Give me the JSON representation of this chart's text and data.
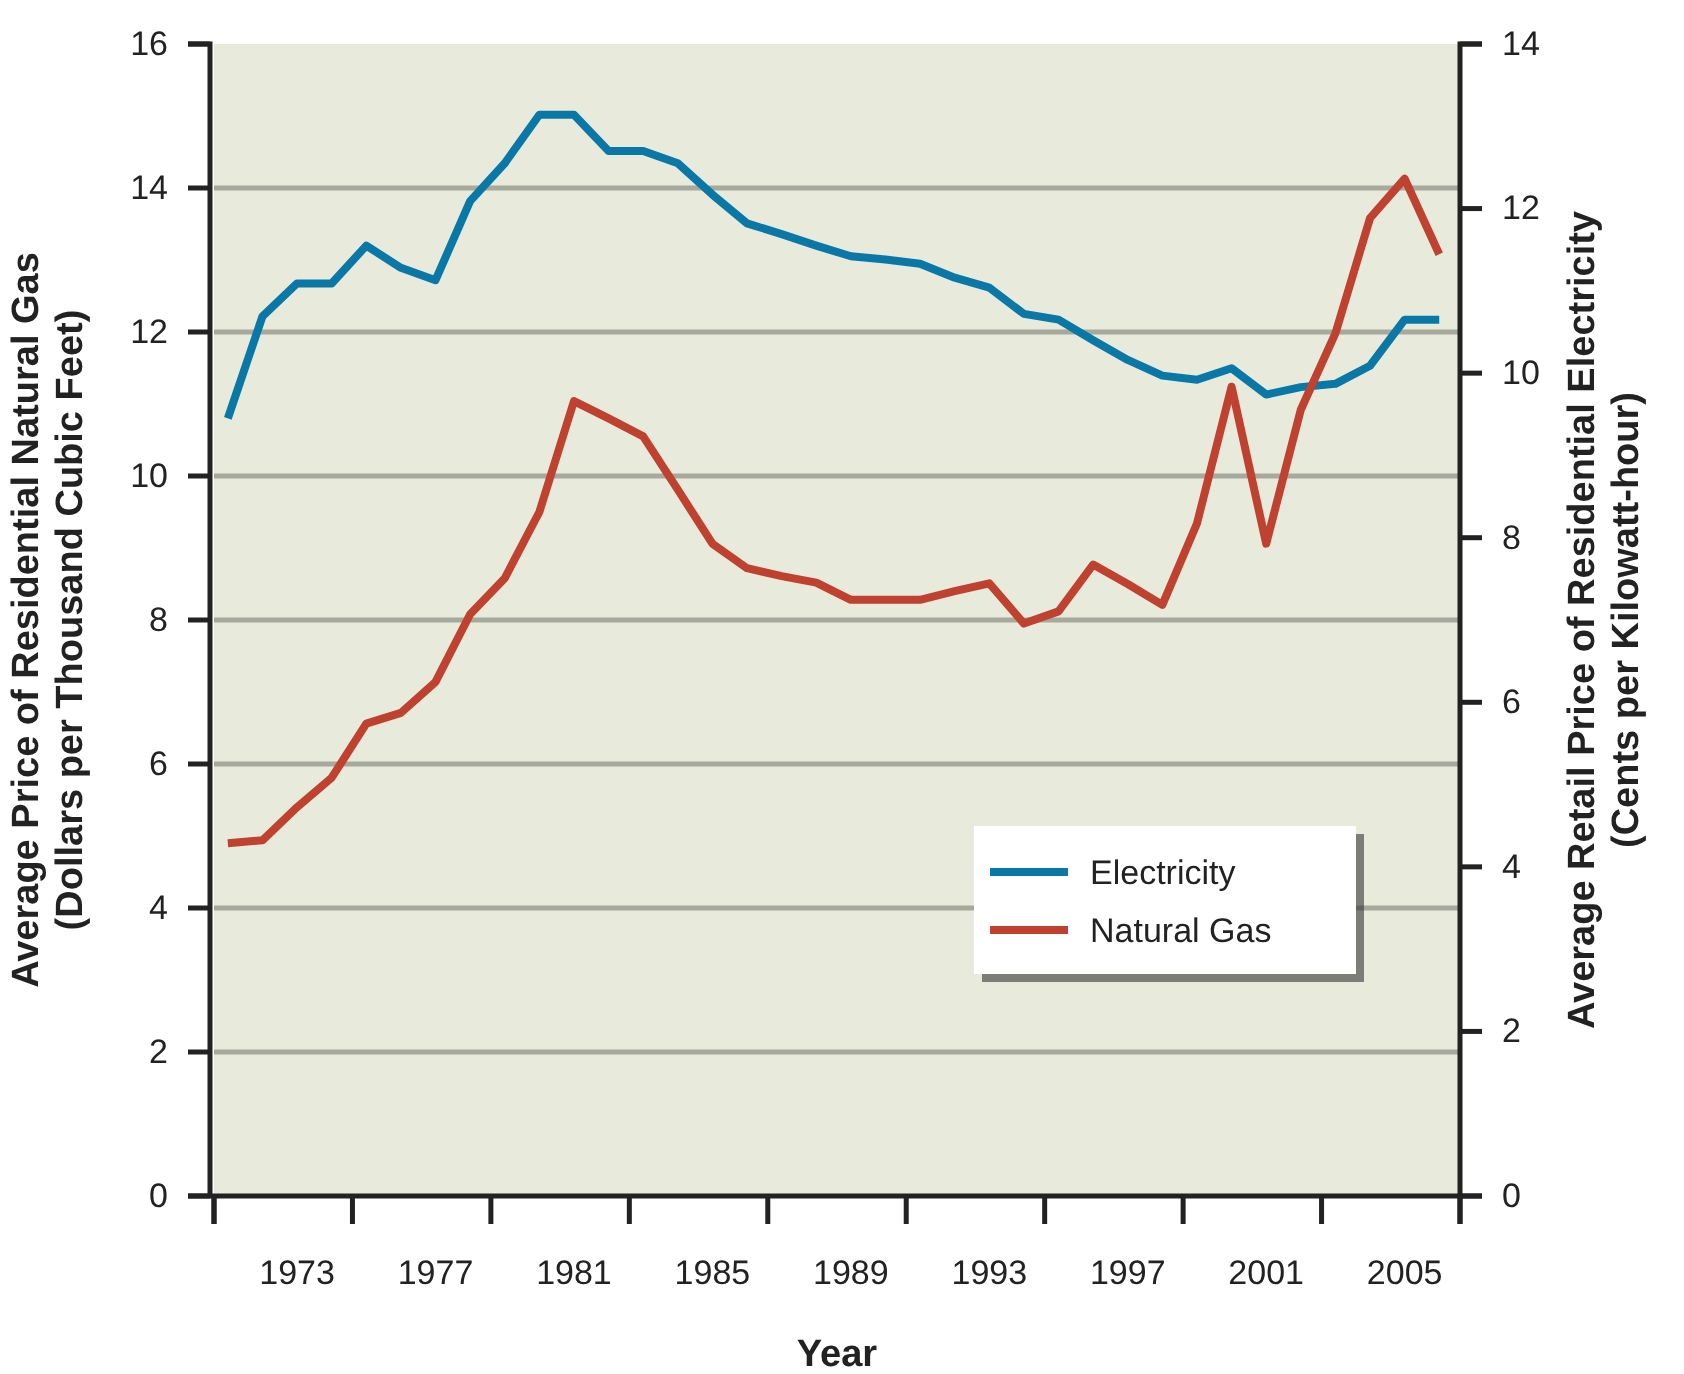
{
  "chart_data": {
    "type": "line",
    "xlabel": "Year",
    "ylabel": "Average Price of Residential Natural Gas\n(Dollars per Thousand Cubic Feet)",
    "y2label": "Average Retail Price of Residential Electricity\n(Cents per Kilowatt-hour)",
    "x": [
      1971,
      1972,
      1973,
      1974,
      1975,
      1976,
      1977,
      1978,
      1979,
      1980,
      1981,
      1982,
      1983,
      1984,
      1985,
      1986,
      1987,
      1988,
      1989,
      1990,
      1991,
      1992,
      1993,
      1994,
      1995,
      1996,
      1997,
      1998,
      1999,
      2000,
      2001,
      2002,
      2003,
      2004,
      2005,
      2006
    ],
    "series": [
      {
        "name": "Electricity",
        "color": "#0a78a6",
        "axis": "y2",
        "values": [
          9.45,
          10.69,
          11.09,
          11.09,
          11.55,
          11.28,
          11.13,
          12.09,
          12.55,
          13.14,
          13.14,
          12.7,
          12.7,
          12.55,
          12.17,
          11.82,
          11.69,
          11.55,
          11.42,
          11.38,
          11.33,
          11.16,
          11.04,
          10.72,
          10.65,
          10.4,
          10.16,
          9.97,
          9.92,
          10.06,
          9.74,
          9.83,
          9.87,
          10.09,
          10.65,
          10.65
        ]
      },
      {
        "name": "Natural Gas",
        "color": "#bf412f",
        "values": [
          4.9,
          4.94,
          5.4,
          5.81,
          6.56,
          6.71,
          7.14,
          8.08,
          8.58,
          9.5,
          11.04,
          10.8,
          10.55,
          9.81,
          9.06,
          8.72,
          8.61,
          8.52,
          8.28,
          8.28,
          8.28,
          8.4,
          8.51,
          7.95,
          8.12,
          8.77,
          8.5,
          8.21,
          9.34,
          11.24,
          9.06,
          10.92,
          11.98,
          13.58,
          14.13,
          13.08
        ]
      }
    ],
    "xlim": [
      1970.6,
      2006.6
    ],
    "xticks": [
      {
        "value": 1970.6,
        "label": null
      },
      {
        "value": 1973,
        "label": "1973"
      },
      {
        "value": 1974.6,
        "label": null
      },
      {
        "value": 1977,
        "label": "1977"
      },
      {
        "value": 1978.6,
        "label": null
      },
      {
        "value": 1981,
        "label": "1981"
      },
      {
        "value": 1982.6,
        "label": null
      },
      {
        "value": 1985,
        "label": "1985"
      },
      {
        "value": 1986.6,
        "label": null
      },
      {
        "value": 1989,
        "label": "1989"
      },
      {
        "value": 1990.6,
        "label": null
      },
      {
        "value": 1993,
        "label": "1993"
      },
      {
        "value": 1994.6,
        "label": null
      },
      {
        "value": 1997,
        "label": "1997"
      },
      {
        "value": 1998.6,
        "label": null
      },
      {
        "value": 2001,
        "label": "2001"
      },
      {
        "value": 2002.6,
        "label": null
      },
      {
        "value": 2005,
        "label": "2005"
      },
      {
        "value": 2006.6,
        "label": null
      }
    ],
    "ylim": [
      0,
      16
    ],
    "yticks": [
      0,
      2,
      4,
      6,
      8,
      10,
      12,
      14,
      16
    ],
    "y2lim": [
      0,
      14
    ],
    "y2ticks": [
      0,
      2,
      4,
      6,
      8,
      10,
      12,
      14
    ],
    "grid": "y",
    "legend": "right",
    "marker": "none",
    "line_style": "solid"
  }
}
